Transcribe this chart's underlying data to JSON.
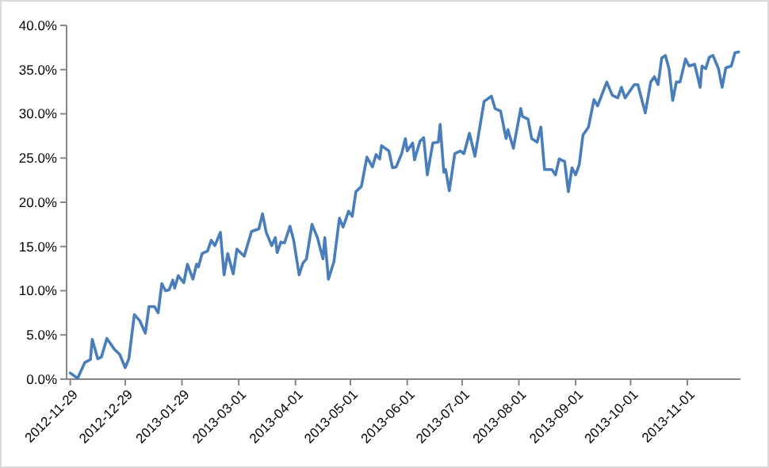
{
  "chart_data": {
    "type": "line",
    "line_style": "solid",
    "marker": "none",
    "x": [
      "2012-11-29",
      "2012-12-03",
      "2012-12-07",
      "2012-12-10",
      "2012-12-11",
      "2012-12-14",
      "2012-12-16",
      "2012-12-19",
      "2012-12-23",
      "2012-12-26",
      "2012-12-29",
      "2012-12-31",
      "2013-01-03",
      "2013-01-06",
      "2013-01-09",
      "2013-01-11",
      "2013-01-14",
      "2013-01-16",
      "2013-01-18",
      "2013-01-20",
      "2013-01-22",
      "2013-01-24",
      "2013-01-25",
      "2013-01-27",
      "2013-01-30",
      "2013-02-01",
      "2013-02-04",
      "2013-02-06",
      "2013-02-07",
      "2013-02-09",
      "2013-02-12",
      "2013-02-14",
      "2013-02-16",
      "2013-02-19",
      "2013-02-21",
      "2013-02-23",
      "2013-02-26",
      "2013-02-28",
      "2013-03-04",
      "2013-03-08",
      "2013-03-12",
      "2013-03-14",
      "2013-03-16",
      "2013-03-19",
      "2013-03-21",
      "2013-03-22",
      "2013-03-24",
      "2013-03-26",
      "2013-03-29",
      "2013-03-31",
      "2013-04-03",
      "2013-04-05",
      "2013-04-07",
      "2013-04-10",
      "2013-04-13",
      "2013-04-16",
      "2013-04-17",
      "2013-04-19",
      "2013-04-22",
      "2013-04-25",
      "2013-04-27",
      "2013-04-30",
      "2013-05-02",
      "2013-05-04",
      "2013-05-07",
      "2013-05-10",
      "2013-05-13",
      "2013-05-15",
      "2013-05-17",
      "2013-05-18",
      "2013-05-22",
      "2013-05-24",
      "2013-05-26",
      "2013-05-29",
      "2013-05-31",
      "2013-06-01",
      "2013-06-04",
      "2013-06-05",
      "2013-06-08",
      "2013-06-10",
      "2013-06-12",
      "2013-06-15",
      "2013-06-18",
      "2013-06-19",
      "2013-06-21",
      "2013-06-22",
      "2013-06-24",
      "2013-06-27",
      "2013-06-30",
      "2013-07-02",
      "2013-07-05",
      "2013-07-08",
      "2013-07-13",
      "2013-07-17",
      "2013-07-19",
      "2013-07-22",
      "2013-07-25",
      "2013-07-26",
      "2013-07-29",
      "2013-08-02",
      "2013-08-03",
      "2013-08-06",
      "2013-08-08",
      "2013-08-11",
      "2013-08-13",
      "2013-08-15",
      "2013-08-19",
      "2013-08-21",
      "2013-08-23",
      "2013-08-26",
      "2013-08-28",
      "2013-08-30",
      "2013-09-01",
      "2013-09-03",
      "2013-09-05",
      "2013-09-08",
      "2013-09-11",
      "2013-09-13",
      "2013-09-18",
      "2013-09-21",
      "2013-09-24",
      "2013-09-26",
      "2013-09-28",
      "2013-10-03",
      "2013-10-05",
      "2013-10-09",
      "2013-10-12",
      "2013-10-14",
      "2013-10-16",
      "2013-10-18",
      "2013-10-20",
      "2013-10-22",
      "2013-10-24",
      "2013-10-26",
      "2013-10-28",
      "2013-10-31",
      "2013-11-02",
      "2013-11-05",
      "2013-11-08",
      "2013-11-09",
      "2013-11-11",
      "2013-11-13",
      "2013-11-15",
      "2013-11-18",
      "2013-11-20",
      "2013-11-22",
      "2013-11-25",
      "2013-11-27",
      "2013-11-29"
    ],
    "series": [
      {
        "color": "#4a7ebb",
        "values": [
          0.7,
          0.1,
          1.9,
          2.2,
          4.5,
          2.3,
          2.5,
          4.6,
          3.4,
          2.8,
          1.3,
          2.3,
          7.3,
          6.6,
          5.2,
          8.2,
          8.2,
          7.5,
          10.8,
          10.0,
          10.1,
          11.2,
          10.3,
          11.7,
          10.9,
          13.0,
          11.3,
          13.0,
          12.7,
          14.2,
          14.5,
          15.7,
          15.1,
          16.6,
          11.8,
          14.2,
          11.9,
          14.7,
          13.9,
          16.7,
          17.0,
          18.7,
          16.6,
          15.1,
          16.0,
          14.3,
          15.5,
          15.4,
          17.3,
          15.7,
          11.8,
          13.1,
          13.6,
          17.5,
          16.0,
          13.6,
          16.0,
          11.3,
          13.3,
          18.2,
          17.2,
          19.0,
          18.4,
          21.2,
          21.8,
          25.1,
          24.0,
          25.4,
          24.9,
          26.4,
          25.8,
          23.9,
          24.0,
          25.5,
          27.2,
          25.8,
          26.7,
          24.8,
          26.9,
          27.3,
          23.1,
          26.7,
          26.8,
          28.8,
          23.4,
          23.7,
          21.3,
          25.5,
          25.8,
          25.5,
          27.8,
          25.2,
          31.4,
          32.0,
          30.6,
          30.3,
          27.2,
          28.2,
          26.1,
          30.6,
          29.7,
          29.4,
          27.2,
          26.8,
          28.5,
          23.7,
          23.7,
          23.1,
          24.9,
          24.6,
          21.2,
          23.9,
          23.1,
          24.3,
          27.6,
          28.5,
          31.6,
          30.9,
          33.6,
          32.1,
          31.8,
          33.0,
          31.8,
          33.3,
          33.3,
          30.1,
          33.6,
          34.2,
          33.3,
          36.3,
          36.6,
          35.1,
          31.5,
          33.6,
          33.6,
          36.2,
          35.4,
          35.6,
          33.0,
          35.4,
          35.1,
          36.4,
          36.6,
          35.1,
          33.0,
          35.2,
          35.4,
          36.9,
          37.0
        ]
      }
    ],
    "xlim": [
      "2012-11-27",
      "2013-11-30"
    ],
    "xticks": [
      {
        "value": "2012-11-29",
        "label": "2012-11-29"
      },
      {
        "value": "2012-12-29",
        "label": "2012-12-29"
      },
      {
        "value": "2013-01-29",
        "label": "2013-01-29"
      },
      {
        "value": "2013-03-01",
        "label": "2013-03-01"
      },
      {
        "value": "2013-04-01",
        "label": "2013-04-01"
      },
      {
        "value": "2013-05-01",
        "label": "2013-05-01"
      },
      {
        "value": "2013-06-01",
        "label": "2013-06-01"
      },
      {
        "value": "2013-07-01",
        "label": "2013-07-01"
      },
      {
        "value": "2013-08-01",
        "label": "2013-08-01"
      },
      {
        "value": "2013-09-01",
        "label": "2013-09-01"
      },
      {
        "value": "2013-10-01",
        "label": "2013-10-01"
      },
      {
        "value": "2013-11-01",
        "label": "2013-11-01"
      }
    ],
    "ylim": [
      0,
      40
    ],
    "yticks": [
      {
        "value": 0,
        "label": "0.0%"
      },
      {
        "value": 5,
        "label": "5.0%"
      },
      {
        "value": 10,
        "label": "10.0%"
      },
      {
        "value": 15,
        "label": "15.0%"
      },
      {
        "value": 20,
        "label": "20.0%"
      },
      {
        "value": 25,
        "label": "25.0%"
      },
      {
        "value": 30,
        "label": "30.0%"
      },
      {
        "value": 35,
        "label": "35.0%"
      },
      {
        "value": 40,
        "label": "40.0%"
      }
    ]
  }
}
